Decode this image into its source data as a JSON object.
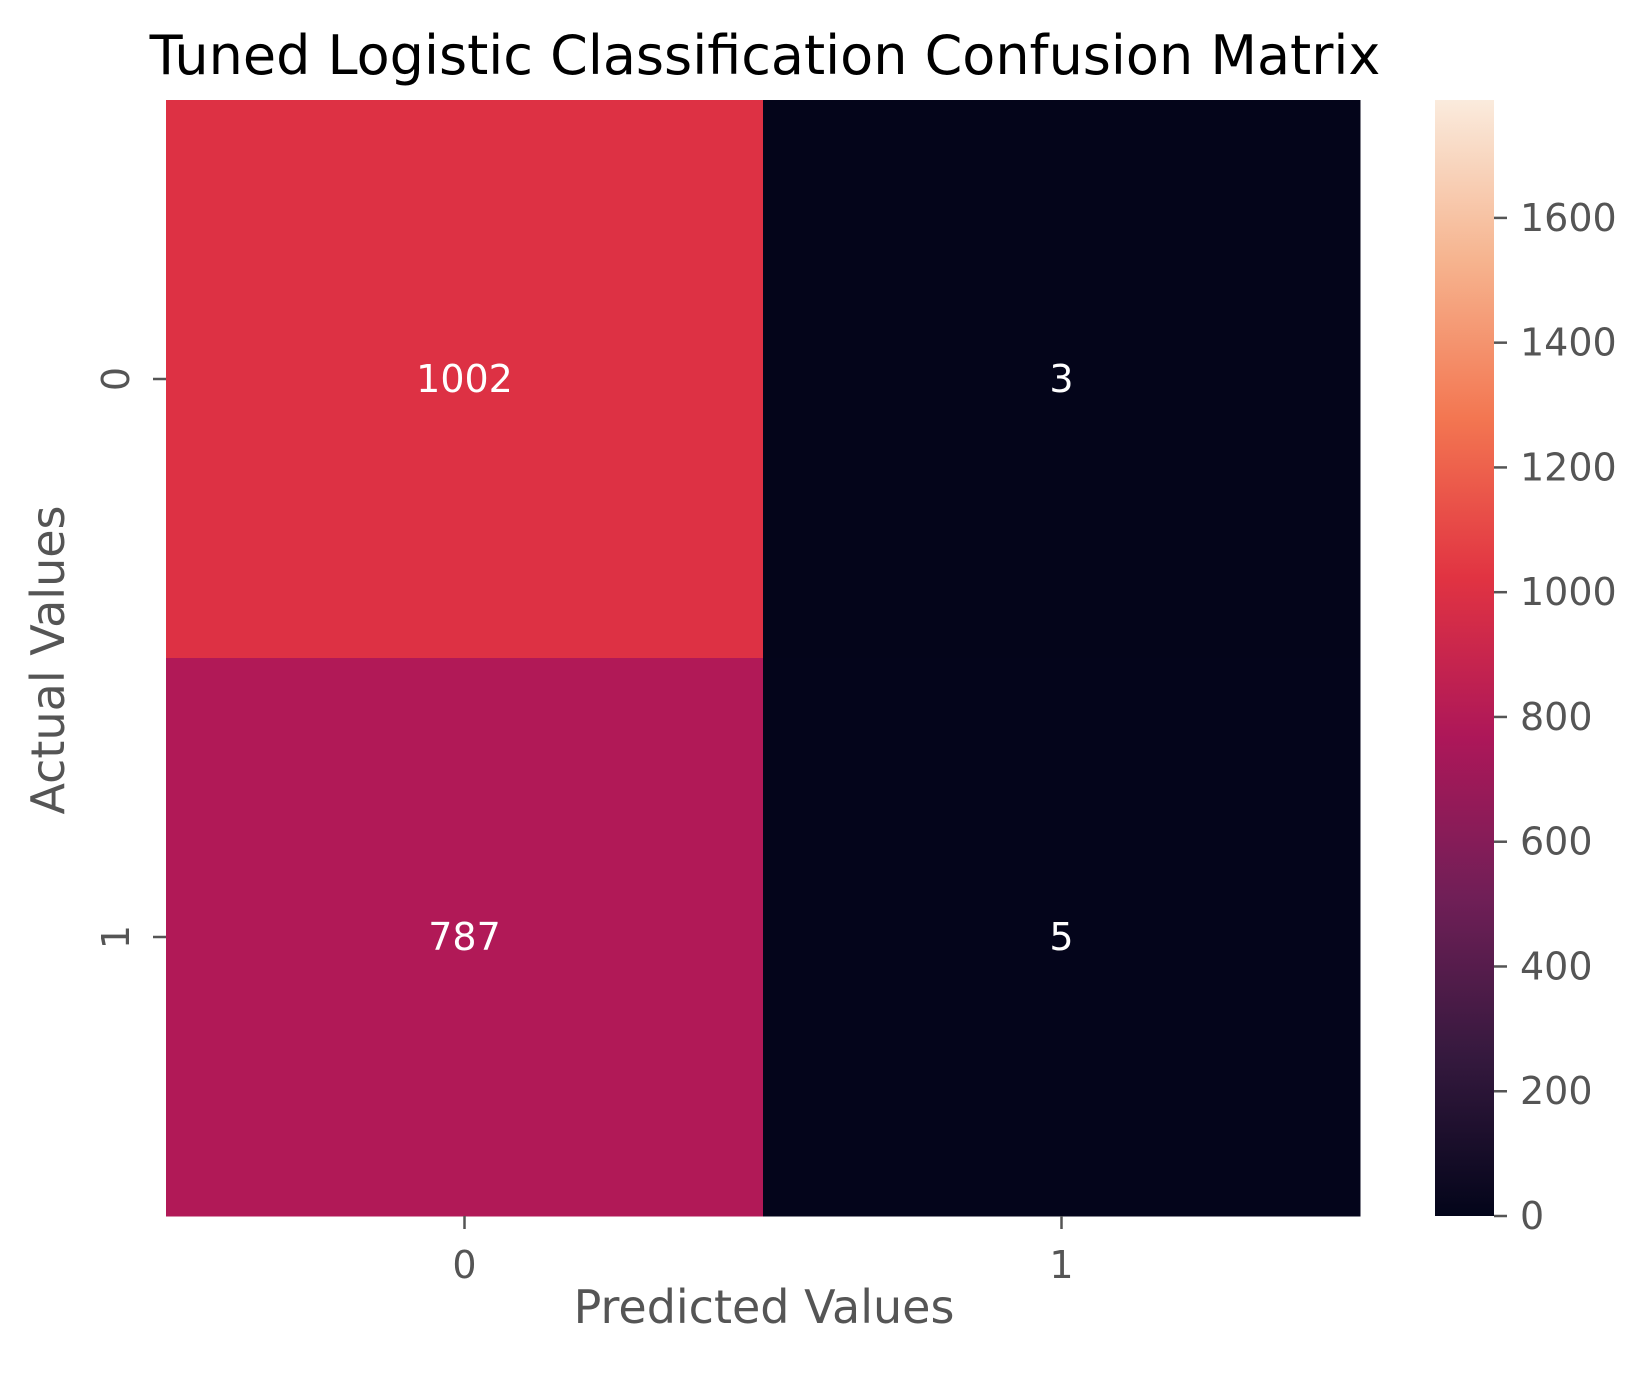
{
  "chart_data": {
    "type": "heatmap",
    "title": "Tuned Logistic Classification Confusion Matrix",
    "xlabel": "Predicted Values",
    "ylabel": "Actual Values",
    "x_categories": [
      "0",
      "1"
    ],
    "y_categories": [
      "0",
      "1"
    ],
    "values": [
      [
        1002,
        3
      ],
      [
        787,
        5
      ]
    ],
    "cell_labels": [
      [
        "1002",
        "3"
      ],
      [
        "787",
        "5"
      ]
    ],
    "colorbar": {
      "range": [
        0,
        1789
      ],
      "ticks": [
        0,
        200,
        400,
        600,
        800,
        1000,
        1200,
        1400,
        1600
      ],
      "tick_labels": [
        "0",
        "200",
        "400",
        "600",
        "800",
        "1000",
        "1200",
        "1400",
        "1600"
      ],
      "colormap": "rocket",
      "colors": [
        "#03051a",
        "#35193e",
        "#701f57",
        "#ad1759",
        "#e13342",
        "#f37651",
        "#f6b48f",
        "#faebdd"
      ]
    },
    "grid": false
  }
}
